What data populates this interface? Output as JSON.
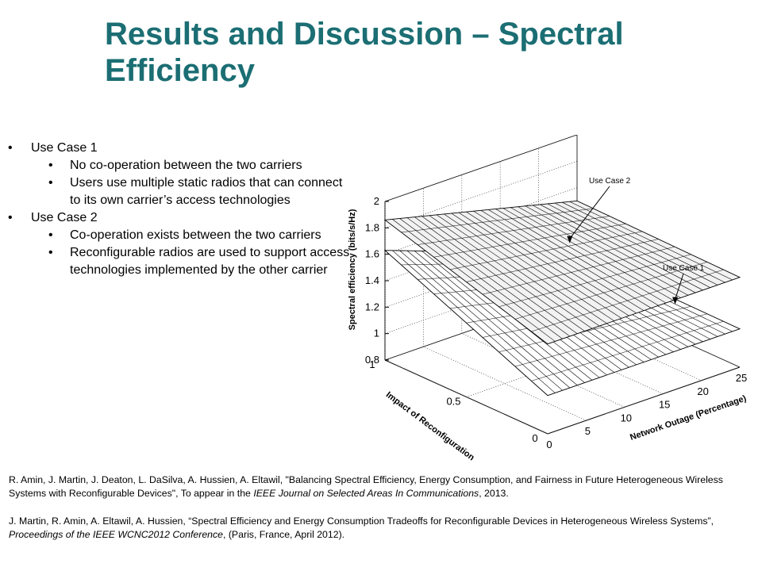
{
  "slide": {
    "title": "Results and Discussion – Spectral Efficiency"
  },
  "bullets": {
    "use_case_1": {
      "label": "Use Case 1",
      "items": [
        "No co-operation between the two carriers",
        "Users use multiple static radios that can connect to its own carrier’s access technologies"
      ]
    },
    "use_case_2": {
      "label": "Use Case 2",
      "items": [
        "Co-operation exists between the two carriers",
        "Reconfigurable radios are used to support access technologies implemented by the other carrier"
      ]
    }
  },
  "chart_data": {
    "type": "surface",
    "x_label": "Network Outage (Percentage)",
    "y_label": "Impact of Reconfiguration",
    "z_label": "Spectral efficiency (bits/s/Hz)",
    "x_range": [
      0,
      25
    ],
    "y_range": [
      0,
      1
    ],
    "z_range": [
      0.8,
      2
    ],
    "x_ticks": [
      0,
      5,
      10,
      15,
      20,
      25
    ],
    "y_ticks": [
      0,
      0.5,
      1
    ],
    "z_ticks": [
      0.8,
      1,
      1.2,
      1.4,
      1.6,
      1.8,
      2
    ],
    "x_tick_labels": [
      "0",
      "5",
      "10",
      "15",
      "20",
      "25"
    ],
    "y_tick_labels": [
      "0",
      "0.5",
      "1"
    ],
    "z_tick_labels": [
      "0.8",
      "1",
      "1.2",
      "1.4",
      "1.6",
      "1.8",
      "2"
    ],
    "grid": true,
    "annotations": [
      "Use Case 2",
      "Use Case 1"
    ],
    "series": [
      {
        "annotation": "Use Case 2",
        "corners": {
          "x0_y1": 1.86,
          "x25_y1": 1.5,
          "x0_y0": 1.48,
          "x25_y0": 1.48
        }
      },
      {
        "annotation": "Use Case 1",
        "corners": {
          "x0_y1": 1.63,
          "x25_y1": 1.1,
          "x0_y0": 1.09,
          "x25_y0": 1.09
        }
      }
    ]
  },
  "references": {
    "ref1": {
      "pre": "R. Amin, J. Martin, J. Deaton, L. DaSilva,  A. Hussien, A. Eltawil, \"Balancing Spectral Efficiency, Energy Consumption, and Fairness in Future Heterogeneous Wireless Systems with Reconfigurable Devices\", To appear in the ",
      "journal": "IEEE Journal on Selected Areas In Communications",
      "post": ", 2013."
    },
    "ref2": {
      "pre": "J. Martin, R. Amin,  A. Eltawil, A. Hussien, “Spectral Efficiency and Energy Consumption Tradeoffs for Reconfigurable Devices in Heterogeneous Wireless Systems”, ",
      "journal": "Proceedings of the IEEE WCNC2012 Conference",
      "post": ", (Paris,  France, April 2012)."
    }
  }
}
